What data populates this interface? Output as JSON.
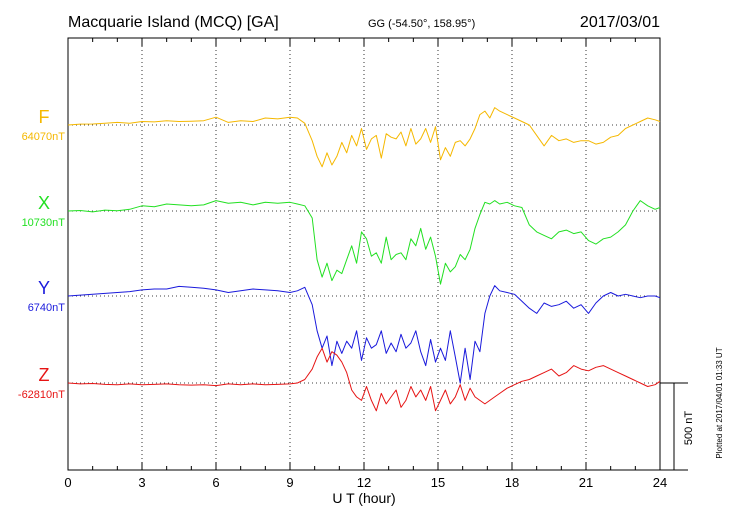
{
  "header": {
    "station": "Macquarie Island (MCQ)  [GA]",
    "coords": "GG (-54.50°, 158.95°)",
    "date": "2017/03/01"
  },
  "footer": {
    "plotted": "Plotted at 2017/04/01 01:33 UT",
    "scale_label": "500 nT"
  },
  "chart_data": {
    "type": "line",
    "title": "Macquarie Island (MCQ)  [GA]",
    "xlabel": "U T (hour)",
    "ylabel": "",
    "xlim": [
      0,
      24
    ],
    "xticks": [
      "0",
      "3",
      "6",
      "9",
      "12",
      "15",
      "18",
      "21",
      "24"
    ],
    "grid": true,
    "scale_bar_nT": 500,
    "series": [
      {
        "name": "F",
        "baseline_label": "64070nT",
        "color": "#f5b800",
        "x": [
          0,
          0.5,
          1,
          1.5,
          2,
          2.5,
          3,
          3.5,
          4,
          4.5,
          5,
          5.5,
          6,
          6.5,
          7,
          7.5,
          8,
          8.5,
          9,
          9.3,
          9.6,
          9.9,
          10.1,
          10.3,
          10.5,
          10.7,
          10.9,
          11.1,
          11.3,
          11.5,
          11.7,
          11.9,
          12.1,
          12.3,
          12.5,
          12.7,
          12.9,
          13.1,
          13.3,
          13.5,
          13.7,
          13.9,
          14.1,
          14.3,
          14.5,
          14.7,
          14.9,
          15.1,
          15.3,
          15.5,
          15.7,
          15.9,
          16.1,
          16.3,
          16.5,
          16.7,
          16.9,
          17.1,
          17.3,
          17.5,
          17.8,
          18.1,
          18.4,
          18.7,
          19,
          19.3,
          19.6,
          19.9,
          20.2,
          20.5,
          20.8,
          21.1,
          21.4,
          21.7,
          22,
          22.3,
          22.6,
          22.9,
          23.2,
          23.5,
          23.8,
          24
        ],
        "y": [
          0,
          5,
          6,
          10,
          15,
          10,
          20,
          18,
          25,
          20,
          22,
          25,
          45,
          15,
          25,
          20,
          40,
          35,
          45,
          40,
          10,
          -90,
          -180,
          -240,
          -160,
          -230,
          -180,
          -100,
          -160,
          -60,
          -120,
          -20,
          -140,
          -80,
          -60,
          -190,
          -50,
          -70,
          -80,
          -40,
          -120,
          -20,
          -110,
          -80,
          -20,
          -100,
          -10,
          -200,
          -130,
          -180,
          -100,
          -90,
          -120,
          -80,
          -20,
          60,
          80,
          40,
          100,
          80,
          60,
          40,
          20,
          0,
          -60,
          -120,
          -60,
          -90,
          -80,
          -100,
          -90,
          -90,
          -110,
          -100,
          -70,
          -60,
          -20,
          0,
          20,
          40,
          30,
          20
        ]
      },
      {
        "name": "X",
        "baseline_label": "10730nT",
        "color": "#22e022",
        "x": [
          0,
          0.5,
          1,
          1.5,
          2,
          2.5,
          3,
          3.5,
          4,
          4.5,
          5,
          5.5,
          6,
          6.5,
          7,
          7.5,
          8,
          8.5,
          9,
          9.3,
          9.6,
          9.9,
          10.1,
          10.3,
          10.5,
          10.7,
          10.9,
          11.1,
          11.3,
          11.5,
          11.7,
          11.9,
          12.1,
          12.3,
          12.5,
          12.7,
          12.9,
          13.1,
          13.3,
          13.5,
          13.7,
          13.9,
          14.1,
          14.3,
          14.5,
          14.7,
          14.9,
          15.1,
          15.3,
          15.5,
          15.7,
          15.9,
          16.1,
          16.3,
          16.5,
          16.7,
          16.9,
          17.1,
          17.3,
          17.5,
          17.8,
          18.1,
          18.4,
          18.7,
          19,
          19.3,
          19.6,
          19.9,
          20.2,
          20.5,
          20.8,
          21.1,
          21.4,
          21.7,
          22,
          22.3,
          22.6,
          22.9,
          23.2,
          23.5,
          23.8,
          24
        ],
        "y": [
          0,
          3,
          -5,
          5,
          2,
          10,
          30,
          25,
          40,
          35,
          30,
          35,
          60,
          45,
          50,
          35,
          50,
          45,
          50,
          40,
          30,
          -40,
          -280,
          -380,
          -300,
          -400,
          -340,
          -360,
          -280,
          -200,
          -300,
          -120,
          -160,
          -260,
          -240,
          -300,
          -150,
          -280,
          -250,
          -240,
          -280,
          -160,
          -200,
          -100,
          -220,
          -150,
          -260,
          -420,
          -300,
          -350,
          -320,
          -250,
          -280,
          -220,
          -100,
          -20,
          50,
          40,
          60,
          40,
          50,
          30,
          20,
          -80,
          -120,
          -140,
          -160,
          -120,
          -110,
          -130,
          -120,
          -170,
          -190,
          -160,
          -150,
          -120,
          -80,
          0,
          60,
          30,
          10,
          20
        ]
      },
      {
        "name": "Y",
        "baseline_label": "6740nT",
        "color": "#1a1adc",
        "x": [
          0,
          0.5,
          1,
          1.5,
          2,
          2.5,
          3,
          3.5,
          4,
          4.5,
          5,
          5.5,
          6,
          6.5,
          7,
          7.5,
          8,
          8.5,
          9,
          9.3,
          9.6,
          9.9,
          10.1,
          10.3,
          10.5,
          10.7,
          10.9,
          11.1,
          11.3,
          11.5,
          11.7,
          11.9,
          12.1,
          12.3,
          12.5,
          12.7,
          12.9,
          13.1,
          13.3,
          13.5,
          13.7,
          13.9,
          14.1,
          14.3,
          14.5,
          14.7,
          14.9,
          15.1,
          15.3,
          15.5,
          15.7,
          15.9,
          16.1,
          16.3,
          16.5,
          16.7,
          16.9,
          17.1,
          17.3,
          17.5,
          17.8,
          18.1,
          18.4,
          18.7,
          19,
          19.3,
          19.6,
          19.9,
          20.2,
          20.5,
          20.8,
          21.1,
          21.4,
          21.7,
          22,
          22.3,
          22.6,
          22.9,
          23.2,
          23.5,
          23.8,
          24
        ],
        "y": [
          0,
          5,
          10,
          15,
          20,
          25,
          35,
          40,
          40,
          55,
          50,
          45,
          35,
          20,
          30,
          40,
          35,
          30,
          20,
          30,
          50,
          -50,
          -200,
          -300,
          -230,
          -400,
          -260,
          -330,
          -260,
          -300,
          -200,
          -370,
          -240,
          -300,
          -280,
          -200,
          -330,
          -270,
          -320,
          -220,
          -300,
          -270,
          -200,
          -320,
          -400,
          -250,
          -380,
          -300,
          -370,
          -200,
          -350,
          -500,
          -300,
          -480,
          -260,
          -320,
          -100,
          0,
          60,
          30,
          20,
          10,
          -30,
          -70,
          -100,
          -40,
          -60,
          -50,
          -30,
          -70,
          -50,
          -100,
          -40,
          0,
          20,
          0,
          10,
          0,
          -10,
          0,
          0,
          -10
        ]
      },
      {
        "name": "Z",
        "baseline_label": "-62810nT",
        "color": "#e61414",
        "x": [
          0,
          0.5,
          1,
          1.5,
          2,
          2.5,
          3,
          3.5,
          4,
          4.5,
          5,
          5.5,
          6,
          6.5,
          7,
          7.5,
          8,
          8.5,
          9,
          9.3,
          9.6,
          9.9,
          10.1,
          10.3,
          10.5,
          10.7,
          10.9,
          11.1,
          11.3,
          11.5,
          11.7,
          11.9,
          12.1,
          12.3,
          12.5,
          12.7,
          12.9,
          13.1,
          13.3,
          13.5,
          13.7,
          13.9,
          14.1,
          14.3,
          14.5,
          14.7,
          14.9,
          15.1,
          15.3,
          15.5,
          15.7,
          15.9,
          16.1,
          16.3,
          16.5,
          16.7,
          16.9,
          17.1,
          17.3,
          17.5,
          17.8,
          18.1,
          18.4,
          18.7,
          19,
          19.3,
          19.6,
          19.9,
          20.2,
          20.5,
          20.8,
          21.1,
          21.4,
          21.7,
          22,
          22.3,
          22.6,
          22.9,
          23.2,
          23.5,
          23.8,
          24
        ],
        "y": [
          0,
          -5,
          -3,
          -8,
          -10,
          -5,
          -10,
          -8,
          -5,
          -10,
          -12,
          -10,
          -15,
          -5,
          -10,
          -5,
          -10,
          -8,
          -5,
          0,
          20,
          80,
          150,
          200,
          120,
          180,
          160,
          120,
          60,
          -40,
          -80,
          -100,
          -20,
          -100,
          -160,
          -60,
          -120,
          -80,
          -40,
          -140,
          -100,
          -20,
          -80,
          -40,
          -100,
          -20,
          -160,
          -100,
          -40,
          -120,
          -80,
          -10,
          -100,
          -30,
          -80,
          -100,
          -120,
          -100,
          -80,
          -60,
          -30,
          -10,
          10,
          20,
          40,
          60,
          80,
          40,
          60,
          100,
          80,
          70,
          90,
          100,
          80,
          60,
          40,
          20,
          0,
          -20,
          -10,
          10
        ]
      }
    ]
  }
}
